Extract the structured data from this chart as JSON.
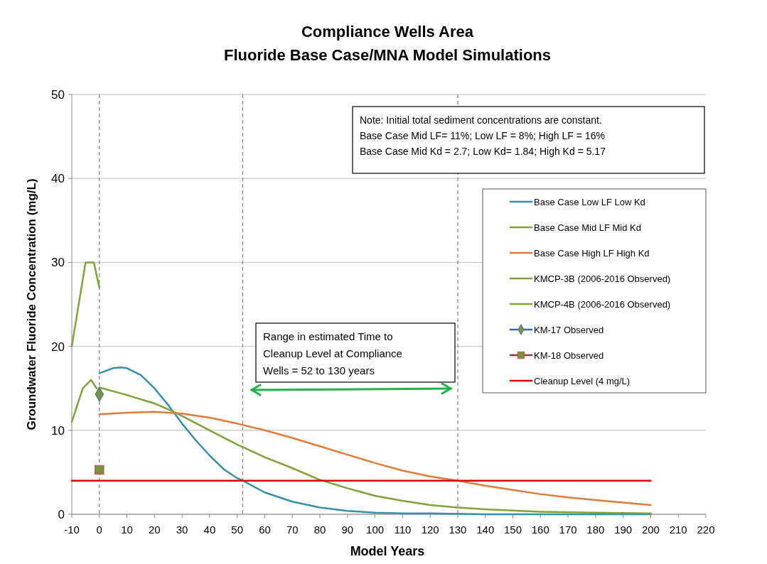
{
  "chart_data": {
    "type": "line",
    "title": "Compliance Wells Area\nFluoride Base Case/MNA Model Simulations",
    "xlabel": "Model Years",
    "ylabel": "Groundwater Fluoride Concentration (mg/L)",
    "xlim": [
      -10,
      220
    ],
    "xticks": [
      -10,
      0,
      10,
      20,
      30,
      40,
      50,
      60,
      70,
      80,
      90,
      100,
      110,
      120,
      130,
      140,
      150,
      160,
      170,
      180,
      190,
      200,
      210,
      220
    ],
    "ylim": [
      0,
      50
    ],
    "yticks": [
      0,
      10,
      20,
      30,
      40,
      50
    ],
    "grid": "y",
    "legend": "right",
    "marker": "none",
    "line_style": "solid",
    "series": [
      {
        "name": "Base Case Low LF Low Kd",
        "color": "#3590ad",
        "x": [
          0,
          5,
          8,
          10,
          15,
          20,
          25,
          30,
          35,
          40,
          45,
          50,
          52,
          60,
          70,
          80,
          90,
          100,
          110,
          120,
          140,
          160,
          200
        ],
        "values": [
          16.8,
          17.4,
          17.5,
          17.4,
          16.6,
          15,
          13,
          10.8,
          8.8,
          7,
          5.4,
          4.3,
          4,
          2.6,
          1.5,
          0.8,
          0.4,
          0.2,
          0.1,
          0.1,
          0,
          0,
          0
        ]
      },
      {
        "name": "Base Case Mid LF Mid Kd",
        "color": "#7fa33a",
        "x": [
          0,
          10,
          20,
          27,
          30,
          40,
          50,
          52,
          60,
          70,
          80,
          90,
          100,
          110,
          120,
          130,
          140,
          160,
          180,
          200
        ],
        "values": [
          15.1,
          14.2,
          13.2,
          12.2,
          11.7,
          10,
          8.3,
          8,
          6.8,
          5.5,
          4.1,
          3.1,
          2.2,
          1.6,
          1.1,
          0.8,
          0.6,
          0.3,
          0.2,
          0.1
        ]
      },
      {
        "name": "Base Case High LF High Kd",
        "color": "#e07b39",
        "x": [
          0,
          10,
          20,
          30,
          40,
          50,
          60,
          70,
          80,
          90,
          100,
          110,
          120,
          130,
          140,
          150,
          160,
          170,
          180,
          190,
          200
        ],
        "values": [
          11.9,
          12.1,
          12.2,
          12,
          11.5,
          10.8,
          10,
          9.1,
          8.1,
          7.1,
          6.1,
          5.2,
          4.5,
          4,
          3.4,
          2.9,
          2.4,
          2,
          1.7,
          1.4,
          1.1
        ]
      },
      {
        "name": "KMCP-3B (2006-2016 Observed)",
        "color": "#7fa33a",
        "x": [
          -10,
          -5,
          -2,
          0
        ],
        "values": [
          20,
          30,
          30,
          27
        ]
      },
      {
        "name": "KMCP-4B (2006-2016 Observed)",
        "color": "#7fa33a",
        "x": [
          -10,
          -6,
          -3,
          -1
        ],
        "values": [
          11,
          15,
          16,
          15
        ]
      },
      {
        "name": "KM-17 Observed",
        "color": "#77933c",
        "type": "scatter",
        "marker": "diamond",
        "x": [
          0
        ],
        "values": [
          14.3
        ]
      },
      {
        "name": "KM-18 Observed",
        "color": "#77933c",
        "type": "scatter",
        "marker": "square",
        "x": [
          0
        ],
        "values": [
          5.3
        ]
      },
      {
        "name": "Cleanup Level (4 mg/L)",
        "color": "#e00000",
        "x": [
          -10,
          200
        ],
        "values": [
          4,
          4
        ]
      }
    ],
    "ref_lines": [
      {
        "axis": "x",
        "value": 0,
        "color": "#808080",
        "line_style": "dashed"
      },
      {
        "axis": "x",
        "value": 52,
        "color": "#808080",
        "line_style": "dashed"
      },
      {
        "axis": "x",
        "value": 130,
        "color": "#808080",
        "line_style": "dashed"
      }
    ],
    "annotations": [
      "Note: Initial total sediment concentrations are constant.\nBase Case Mid LF= 11%; Low LF = 8%; High LF = 16%\nBase Case Mid Kd = 2.7; Low Kd= 1.84; High Kd = 5.17",
      "Range in estimated Time to\nCleanup Level at Compliance\nWells = 52 to 130 years"
    ]
  }
}
